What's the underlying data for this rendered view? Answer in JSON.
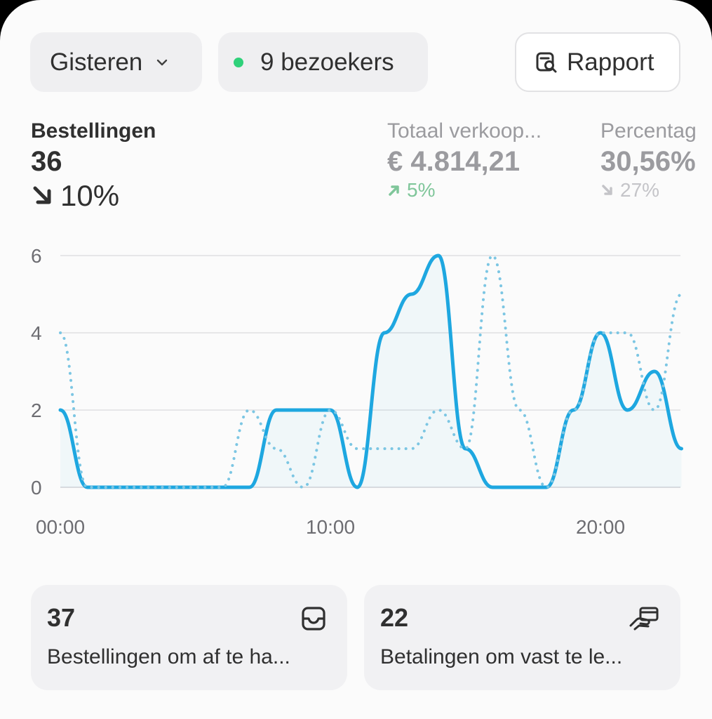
{
  "header": {
    "date_filter": "Gisteren",
    "visitors": "9 bezoekers",
    "report_button": "Rapport"
  },
  "metrics": [
    {
      "label": "Bestellingen",
      "value": "36",
      "change": "10%",
      "direction": "down"
    },
    {
      "label": "Totaal verkoop...",
      "value": "€ 4.814,21",
      "change": "5%",
      "direction": "up",
      "color": "#7fc69a"
    },
    {
      "label": "Percentag",
      "value": "30,56%",
      "change": "27%",
      "direction": "down",
      "color": "#c4c4c8"
    }
  ],
  "chart_data": {
    "type": "line",
    "x": [
      0,
      1,
      2,
      3,
      4,
      5,
      6,
      7,
      8,
      9,
      10,
      11,
      12,
      13,
      14,
      15,
      16,
      17,
      18,
      19,
      20,
      21,
      22,
      23
    ],
    "x_tick_labels": [
      {
        "x": 0,
        "label": "00:00"
      },
      {
        "x": 10,
        "label": "10:00"
      },
      {
        "x": 20,
        "label": "20:00"
      }
    ],
    "yticks": [
      0,
      2,
      4,
      6
    ],
    "ylim": [
      0,
      6
    ],
    "grid": true,
    "series": [
      {
        "values": [
          2,
          0,
          0,
          0,
          0,
          0,
          0,
          0,
          2,
          2,
          2,
          0,
          4,
          5,
          6,
          1,
          0,
          0,
          0,
          2,
          4,
          2,
          3,
          1
        ],
        "style": "solid",
        "color": "#1ea7e0"
      },
      {
        "values": [
          4,
          0,
          0,
          0,
          0,
          0,
          0,
          2,
          1,
          0,
          2,
          1,
          1,
          1,
          2,
          1,
          6,
          2,
          0,
          2,
          4,
          4,
          2,
          5
        ],
        "style": "dotted",
        "color": "#7cc6e3"
      }
    ]
  },
  "cards": [
    {
      "value": "37",
      "label": "Bestellingen om af te ha...",
      "icon": "inbox-icon"
    },
    {
      "value": "22",
      "label": "Betalingen om vast te le...",
      "icon": "hand-card-icon"
    }
  ]
}
